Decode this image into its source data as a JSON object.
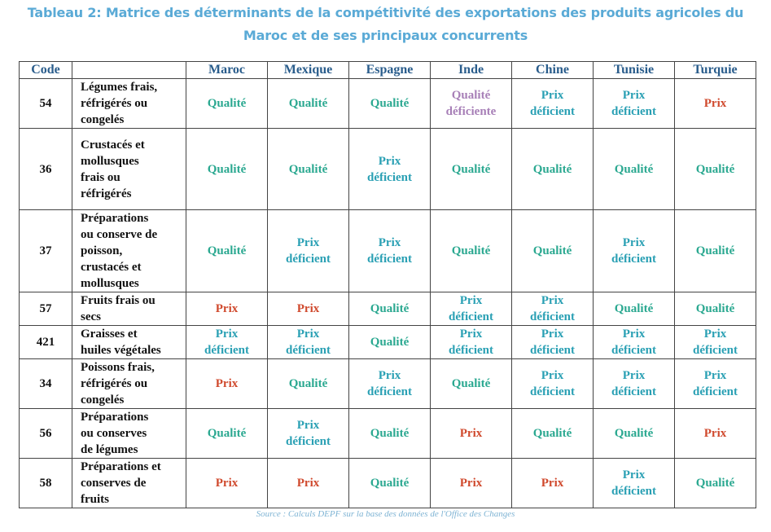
{
  "title_line1": "Tableau 2: Matrice des déterminants de la compétitivité des exportations des produits agricoles du",
  "title_line2": "Maroc et de ses principaux concurrents",
  "headers": [
    "Code",
    "",
    "Maroc",
    "Mexique",
    "Espagne",
    "Inde",
    "Chine",
    "Tunisie",
    "Turquie"
  ],
  "rows": [
    {
      "code": "54",
      "label": [
        "Légumes frais,",
        "réfrigérés ou",
        "congelés"
      ],
      "cells": [
        [
          "Qualité"
        ],
        [
          "Qualité"
        ],
        [
          "Qualité"
        ],
        [
          "Qualité",
          "déficiente"
        ],
        [
          "Prix",
          "déficient"
        ],
        [
          "Prix",
          "déficient"
        ],
        [
          "Prix"
        ]
      ]
    },
    {
      "code": "36",
      "label": [
        "Crustacés et",
        "mollusques",
        "frais ou",
        "réfrigérés"
      ],
      "cells": [
        [
          "Qualité"
        ],
        [
          "Qualité"
        ],
        [
          "Prix",
          "déficient"
        ],
        [
          "Qualité"
        ],
        [
          "Qualité"
        ],
        [
          "Qualité"
        ],
        [
          "Qualité"
        ]
      ]
    },
    {
      "code": "37",
      "label": [
        "Préparations",
        "ou conserve de",
        "poisson,",
        "crustacés et",
        "mollusques"
      ],
      "cells": [
        [
          "Qualité"
        ],
        [
          "Prix",
          "déficient"
        ],
        [
          "Prix",
          "déficient"
        ],
        [
          "Qualité"
        ],
        [
          "Qualité"
        ],
        [
          "Prix",
          "déficient"
        ],
        [
          "Qualité"
        ]
      ]
    },
    {
      "code": "57",
      "label": [
        "Fruits frais ou",
        "secs"
      ],
      "cells": [
        [
          "Prix"
        ],
        [
          "Prix"
        ],
        [
          "Qualité"
        ],
        [
          "Prix",
          "déficient"
        ],
        [
          "Prix",
          "déficient"
        ],
        [
          "Qualité"
        ],
        [
          "Qualité"
        ]
      ]
    },
    {
      "code": "421",
      "label": [
        "Graisses et",
        "huiles végétales"
      ],
      "cells": [
        [
          "Prix",
          "déficient"
        ],
        [
          "Prix",
          "déficient"
        ],
        [
          "Qualité"
        ],
        [
          "Prix",
          "déficient"
        ],
        [
          "Prix",
          "déficient"
        ],
        [
          "Prix",
          "déficient"
        ],
        [
          "Prix",
          "déficient"
        ]
      ]
    },
    {
      "code": "34",
      "label": [
        "Poissons frais,",
        "réfrigérés ou",
        "congelés"
      ],
      "cells": [
        [
          "Prix"
        ],
        [
          "Qualité"
        ],
        [
          "Prix",
          "déficient"
        ],
        [
          "Qualité"
        ],
        [
          "Prix",
          "déficient"
        ],
        [
          "Prix",
          "déficient"
        ],
        [
          "Prix",
          "déficient"
        ]
      ]
    },
    {
      "code": "56",
      "label": [
        "Préparations",
        "ou conserves",
        "de légumes"
      ],
      "cells": [
        [
          "Qualité"
        ],
        [
          "Prix",
          "déficient"
        ],
        [
          "Qualité"
        ],
        [
          "Prix"
        ],
        [
          "Qualité"
        ],
        [
          "Qualité"
        ],
        [
          "Prix"
        ]
      ]
    },
    {
      "code": "58",
      "label": [
        "Préparations et",
        "conserves de",
        "fruits"
      ],
      "cells": [
        [
          "Prix"
        ],
        [
          "Prix"
        ],
        [
          "Qualité"
        ],
        [
          "Prix"
        ],
        [
          "Prix"
        ],
        [
          "Prix",
          "déficient"
        ],
        [
          "Qualité"
        ]
      ]
    }
  ],
  "source": "Source : Calculs DEPF sur la base des données de l'Office des Changes"
}
